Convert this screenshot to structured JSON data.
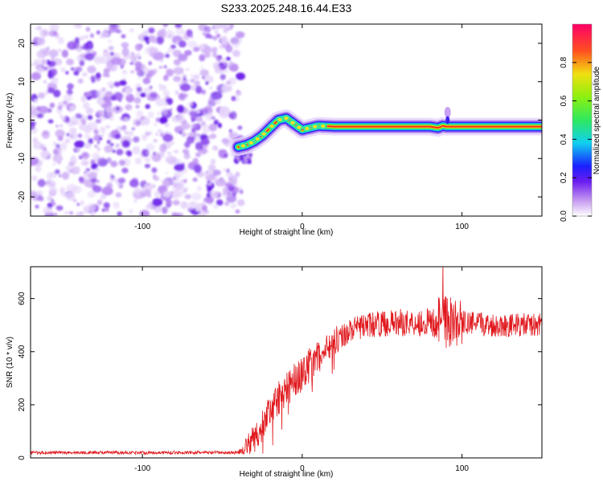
{
  "title": "S233.2025.248.16.44.E33",
  "chart_data": [
    {
      "type": "heatmap",
      "xlabel": "Height of straight line (km)",
      "ylabel": "Frequency (Hz)",
      "xlim": [
        -170,
        150
      ],
      "ylim": [
        -25,
        25
      ],
      "xticks": [
        -100,
        0,
        100
      ],
      "yticks": [
        -20,
        -10,
        0,
        10,
        20
      ],
      "noise_region": [
        -170,
        -40
      ],
      "ridge": {
        "x": [
          -40,
          -35,
          -30,
          -25,
          -20,
          -15,
          -10,
          -5,
          0,
          5,
          10,
          20,
          40,
          60,
          80,
          85,
          88,
          90,
          95,
          100,
          120,
          150
        ],
        "y": [
          -7,
          -6.5,
          -5.5,
          -4,
          -2,
          0,
          0.5,
          -1,
          -2.5,
          -2,
          -1.5,
          -1.7,
          -1.7,
          -1.7,
          -1.7,
          -2,
          -1.5,
          -1.7,
          -1.7,
          -1.7,
          -1.7,
          -1.7
        ]
      },
      "colorbar": {
        "label": "Normalized spectral amplitude",
        "ticks": [
          0.0,
          0.2,
          0.4,
          0.6,
          0.8
        ],
        "range": [
          0,
          1
        ]
      }
    },
    {
      "type": "line",
      "xlabel": "Height of straight line (km)",
      "ylabel": "SNR (10 * v/v)",
      "xlim": [
        -170,
        150
      ],
      "ylim": [
        0,
        720
      ],
      "xticks": [
        -100,
        0,
        100
      ],
      "yticks": [
        0,
        200,
        400,
        600
      ],
      "color": "#e0191e",
      "envelope": {
        "x": [
          -170,
          -40,
          -30,
          -20,
          -10,
          0,
          10,
          20,
          30,
          40,
          60,
          80,
          90,
          95,
          100,
          120,
          150
        ],
        "y": [
          20,
          20,
          70,
          180,
          260,
          320,
          380,
          440,
          480,
          500,
          510,
          510,
          520,
          520,
          510,
          500,
          500
        ]
      },
      "noise_amplitude": {
        "x": [
          -170,
          -40,
          -30,
          0,
          30,
          80,
          90,
          100,
          150
        ],
        "y": [
          6,
          6,
          60,
          70,
          45,
          55,
          120,
          45,
          45
        ]
      }
    }
  ]
}
